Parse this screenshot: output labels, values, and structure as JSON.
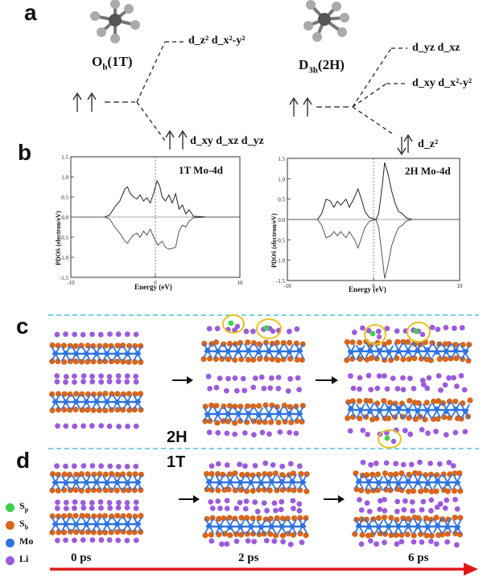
{
  "panels": {
    "a": "a",
    "b": "b",
    "c": "c",
    "d": "d"
  },
  "panel_a": {
    "left_symmetry": "O",
    "left_symmetry_sub": "h",
    "left_symmetry_suffix": "(1T)",
    "right_symmetry": "D",
    "right_symmetry_sub": "3h",
    "right_symmetry_suffix": "(2H)",
    "left_upper_orbitals": "d_z² d_x²-y²",
    "left_lower_orbitals": "d_xy d_xz d_yz",
    "right_upper_orbitals": "d_yz  d_xz",
    "right_middle_orbitals": "d_xy d_x²-y²",
    "right_lower_orbitals": "d_z²"
  },
  "chart_data": [
    {
      "type": "line",
      "title": "1T Mo-4d",
      "xlabel": "Energy (eV)",
      "ylabel": "PDOS (electron/eV)",
      "xlim": [
        -10,
        10
      ],
      "ylim": [
        -1.5,
        1.5
      ],
      "xticks": [
        -10,
        0,
        10
      ],
      "yticks": [
        1.5,
        1.0,
        0.5,
        0.0,
        -0.5,
        -1.0,
        -1.5
      ],
      "fermi_level": 0,
      "series": [
        {
          "values": [
            [
              -10,
              0
            ],
            [
              -6,
              0
            ],
            [
              -5.4,
              0.05
            ],
            [
              -4.8,
              0.25
            ],
            [
              -4.2,
              0.4
            ],
            [
              -3.6,
              0.7
            ],
            [
              -3.3,
              0.75
            ],
            [
              -3.0,
              0.6
            ],
            [
              -2.6,
              0.5
            ],
            [
              -2.2,
              0.45
            ],
            [
              -1.8,
              0.55
            ],
            [
              -1.4,
              0.4
            ],
            [
              -1.0,
              0.48
            ],
            [
              -0.6,
              0.35
            ],
            [
              -0.2,
              0.6
            ],
            [
              0.2,
              0.9
            ],
            [
              0.5,
              0.78
            ],
            [
              0.8,
              0.5
            ],
            [
              1.2,
              0.4
            ],
            [
              1.6,
              0.55
            ],
            [
              2.0,
              0.35
            ],
            [
              2.4,
              0.58
            ],
            [
              2.8,
              0.2
            ],
            [
              3.2,
              0.3
            ],
            [
              3.6,
              0.08
            ],
            [
              4.0,
              0.18
            ],
            [
              4.5,
              0.02
            ],
            [
              6,
              0
            ],
            [
              10,
              0
            ]
          ]
        },
        {
          "values": [
            [
              -10,
              0
            ],
            [
              -6,
              0
            ],
            [
              -5.4,
              -0.05
            ],
            [
              -4.8,
              -0.25
            ],
            [
              -4.2,
              -0.4
            ],
            [
              -3.6,
              -0.6
            ],
            [
              -3.3,
              -0.65
            ],
            [
              -3.0,
              -0.55
            ],
            [
              -2.6,
              -0.45
            ],
            [
              -2.2,
              -0.4
            ],
            [
              -1.8,
              -0.5
            ],
            [
              -1.4,
              -0.35
            ],
            [
              -1.0,
              -0.45
            ],
            [
              -0.6,
              -0.3
            ],
            [
              -0.2,
              -0.5
            ],
            [
              0.3,
              -0.7
            ],
            [
              0.8,
              -0.6
            ],
            [
              1.2,
              -0.75
            ],
            [
              1.6,
              -0.8
            ],
            [
              2.0,
              -0.78
            ],
            [
              2.4,
              -0.75
            ],
            [
              2.8,
              -0.35
            ],
            [
              3.2,
              -0.2
            ],
            [
              3.6,
              -0.25
            ],
            [
              4.0,
              -0.1
            ],
            [
              4.5,
              -0.02
            ],
            [
              6,
              0
            ],
            [
              10,
              0
            ]
          ]
        }
      ]
    },
    {
      "type": "line",
      "title": "2H Mo-4d",
      "xlabel": "Energy (eV)",
      "ylabel": "PDOS (electron/eV)",
      "xlim": [
        -10,
        10
      ],
      "ylim": [
        -1.5,
        1.5
      ],
      "xticks": [
        -10,
        0,
        10
      ],
      "yticks": [
        1.5,
        1.0,
        0.5,
        0.0,
        -0.5,
        -1.0,
        -1.5
      ],
      "fermi_level": 0,
      "series": [
        {
          "values": [
            [
              -10,
              0
            ],
            [
              -6.5,
              0
            ],
            [
              -6.0,
              0.15
            ],
            [
              -5.5,
              0.5
            ],
            [
              -5.0,
              0.45
            ],
            [
              -4.6,
              0.3
            ],
            [
              -4.2,
              0.45
            ],
            [
              -3.8,
              0.35
            ],
            [
              -3.2,
              0.5
            ],
            [
              -2.8,
              0.3
            ],
            [
              -2.2,
              0.55
            ],
            [
              -1.8,
              0.75
            ],
            [
              -1.4,
              0.5
            ],
            [
              -1.0,
              0.2
            ],
            [
              -0.5,
              0.05
            ],
            [
              0.3,
              0.0
            ],
            [
              0.6,
              0.15
            ],
            [
              1.0,
              0.8
            ],
            [
              1.3,
              1.4
            ],
            [
              1.7,
              1.1
            ],
            [
              2.1,
              0.7
            ],
            [
              2.5,
              0.4
            ],
            [
              2.9,
              0.2
            ],
            [
              3.3,
              0.15
            ],
            [
              3.8,
              0.04
            ],
            [
              4.5,
              0
            ],
            [
              10,
              0
            ]
          ]
        },
        {
          "values": [
            [
              -10,
              0
            ],
            [
              -6.5,
              0
            ],
            [
              -6.0,
              -0.15
            ],
            [
              -5.5,
              -0.45
            ],
            [
              -5.0,
              -0.4
            ],
            [
              -4.6,
              -0.3
            ],
            [
              -4.2,
              -0.4
            ],
            [
              -3.8,
              -0.3
            ],
            [
              -3.2,
              -0.45
            ],
            [
              -2.8,
              -0.3
            ],
            [
              -2.2,
              -0.5
            ],
            [
              -1.8,
              -0.7
            ],
            [
              -1.4,
              -0.45
            ],
            [
              -1.0,
              -0.2
            ],
            [
              -0.5,
              -0.05
            ],
            [
              0.3,
              0.0
            ],
            [
              0.6,
              -0.2
            ],
            [
              1.0,
              -0.9
            ],
            [
              1.3,
              -1.45
            ],
            [
              1.7,
              -1.1
            ],
            [
              2.1,
              -0.65
            ],
            [
              2.5,
              -0.4
            ],
            [
              2.9,
              -0.2
            ],
            [
              3.3,
              -0.15
            ],
            [
              3.8,
              -0.04
            ],
            [
              4.5,
              0
            ],
            [
              10,
              0
            ]
          ]
        }
      ]
    }
  ],
  "panel_cd": {
    "label_2h": "2H",
    "label_1t": "1T",
    "times": [
      "0 ps",
      "2 ps",
      "6 ps"
    ],
    "legend": [
      {
        "label": "S",
        "sub": "p",
        "color": "#3fd14a"
      },
      {
        "label": "S",
        "sub": "b",
        "color": "#d9661c"
      },
      {
        "label": "Mo",
        "sub": "",
        "color": "#2f74e0"
      },
      {
        "label": "Li",
        "sub": "",
        "color": "#9b5cdb"
      }
    ],
    "colors": {
      "mo": "#2f74e0",
      "s": "#d9661c",
      "li": "#9b5cdb",
      "sp": "#3fd14a",
      "circle": "#e8c21a",
      "arrow": "#e01818",
      "dash": "#49c6d6"
    }
  }
}
